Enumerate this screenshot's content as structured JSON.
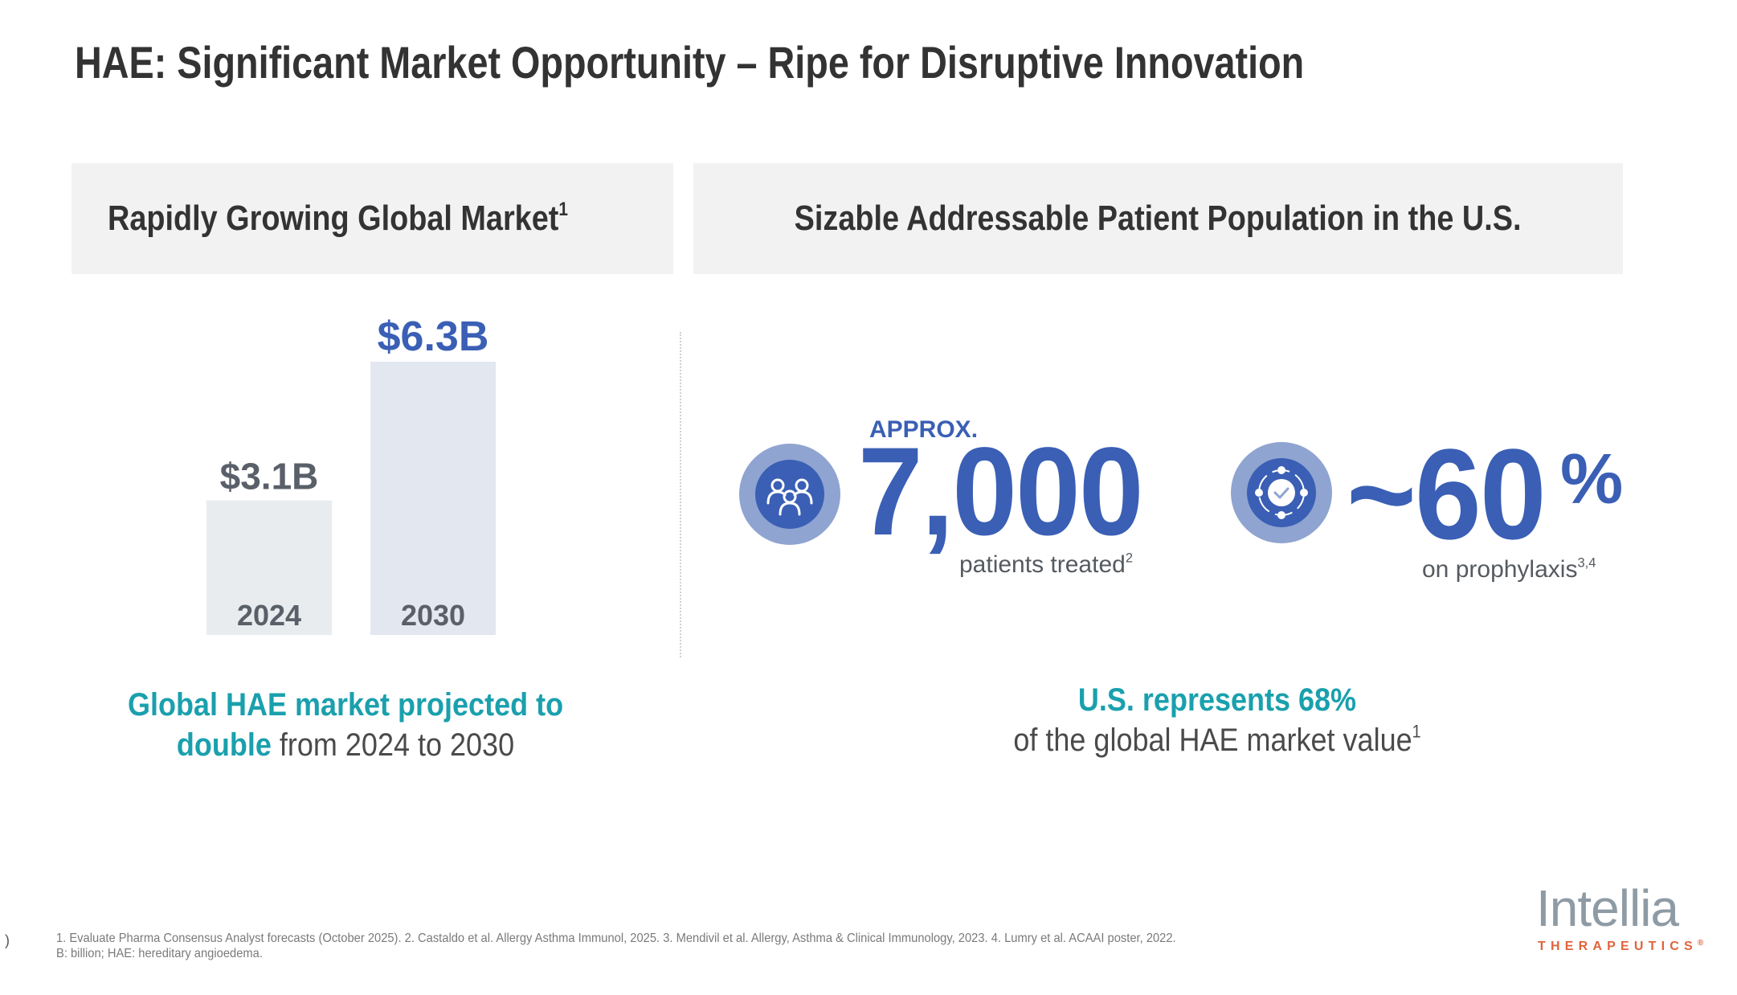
{
  "slide": {
    "title": "HAE: Significant Market Opportunity – Ripe for Disruptive Innovation",
    "page_number": ")"
  },
  "left_panel": {
    "header": "Rapidly Growing Global Market",
    "header_sup": "1",
    "caption_teal": "Global HAE market projected to",
    "caption_teal2": "double",
    "caption_gray": " from 2024 to 2030"
  },
  "right_panel": {
    "header": "Sizable Addressable Patient Population in the U.S.",
    "stat1": {
      "icon": "people-group-icon",
      "prefix": "APPROX.",
      "value": "7,000",
      "label": "patients treated",
      "label_sup": "2"
    },
    "stat2": {
      "icon": "cycle-check-icon",
      "value": "~60",
      "unit": "%",
      "label": "on prophylaxis",
      "label_sup": "3,4"
    },
    "caption_teal": "U.S. represents 68%",
    "caption_gray": "of the global HAE market value",
    "caption_sup": "1"
  },
  "chart_data": {
    "type": "bar",
    "title": "Rapidly Growing Global Market",
    "categories": [
      "2024",
      "2030"
    ],
    "values": [
      3.1,
      6.3
    ],
    "value_labels": [
      "$3.1B",
      "$6.3B"
    ],
    "unit": "USD billions",
    "xlabel": "",
    "ylabel": "",
    "ylim": [
      0,
      6.3
    ],
    "grid": false,
    "legend": "none",
    "colors": {
      "bars": [
        "#e8ecef",
        "#e2e7f0"
      ],
      "labels": [
        "#5a6069",
        "#3a5fb5"
      ],
      "category_labels": "#5a6069"
    }
  },
  "footnotes": {
    "line1": "1. Evaluate Pharma Consensus Analyst forecasts (October 2025). 2. Castaldo et al. Allergy Asthma Immunol, 2025. 3. Mendivil et al. Allergy, Asthma & Clinical Immunology, 2023. 4. Lumry et al. ACAAI poster, 2022.",
    "line2": "B: billion; HAE: hereditary angioedema."
  },
  "logo": {
    "name": "Intellia",
    "subtitle": "THERAPEUTICS",
    "mark": "®"
  },
  "colors": {
    "primary_blue": "#3a5fb5",
    "icon_ring": "#8fa4d0",
    "teal": "#1aa0ad",
    "header_bg": "#f2f2f2",
    "logo_gray": "#8e9ba5",
    "logo_orange": "#e0643c"
  }
}
